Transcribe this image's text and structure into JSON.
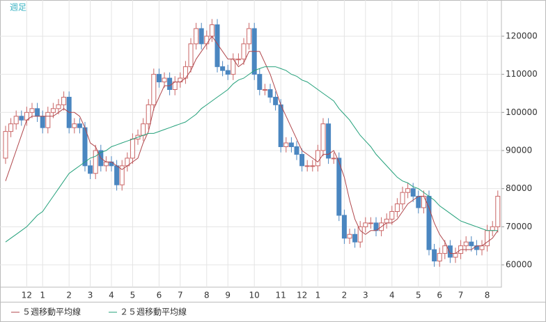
{
  "chart_data": {
    "type": "candlestick",
    "title": "週足",
    "categories": [
      null,
      null,
      null,
      null,
      "12",
      null,
      null,
      "1",
      null,
      null,
      null,
      null,
      "2",
      null,
      null,
      null,
      "3",
      null,
      null,
      null,
      "4",
      null,
      null,
      null,
      "5",
      null,
      null,
      null,
      null,
      "6",
      null,
      null,
      null,
      "7",
      null,
      null,
      null,
      null,
      "8",
      null,
      null,
      null,
      "9",
      null,
      null,
      null,
      null,
      "10",
      null,
      null,
      null,
      null,
      "11",
      null,
      null,
      null,
      "12",
      null,
      null,
      "1",
      null,
      null,
      null,
      null,
      "2",
      null,
      null,
      null,
      "3",
      null,
      null,
      null,
      null,
      "4",
      null,
      null,
      null,
      null,
      "5",
      null,
      null,
      null,
      "6",
      null,
      null,
      null,
      "7",
      null,
      null,
      null,
      null,
      "8",
      null,
      null
    ],
    "open": [
      88000,
      95000,
      97000,
      99000,
      98000,
      100000,
      101000,
      99000,
      96000,
      100000,
      101000,
      102000,
      104000,
      96000,
      97000,
      96000,
      86000,
      84000,
      90000,
      86000,
      87000,
      86000,
      81000,
      86000,
      88000,
      93000,
      94000,
      97000,
      102000,
      110000,
      108000,
      109000,
      106000,
      108000,
      109000,
      112000,
      118000,
      122000,
      118000,
      120000,
      123000,
      112000,
      111000,
      110000,
      114000,
      114000,
      118000,
      122000,
      110000,
      106000,
      106000,
      104000,
      102000,
      91000,
      92000,
      91000,
      89000,
      86000,
      86000,
      86000,
      90000,
      97000,
      88000,
      88000,
      73000,
      67000,
      68000,
      66000,
      70000,
      71000,
      71000,
      69000,
      71000,
      72000,
      74000,
      76000,
      79000,
      80000,
      78000,
      75000,
      78000,
      64000,
      61000,
      63000,
      65000,
      62000,
      63000,
      65000,
      66000,
      65000,
      64000,
      65000,
      69000,
      70000
    ],
    "high": [
      96500,
      98500,
      100500,
      100500,
      101500,
      102500,
      102500,
      100500,
      101500,
      102500,
      103500,
      105500,
      105500,
      98500,
      98500,
      97500,
      87500,
      91500,
      91500,
      88500,
      88500,
      87500,
      87500,
      89500,
      94500,
      95500,
      98500,
      103500,
      111500,
      111500,
      110500,
      110500,
      109500,
      110500,
      113500,
      119500,
      123500,
      123500,
      121500,
      124500,
      124500,
      113500,
      112500,
      115500,
      115500,
      119500,
      123500,
      123500,
      111500,
      107500,
      107500,
      105500,
      103500,
      93500,
      93500,
      92500,
      90500,
      87500,
      87500,
      91500,
      98500,
      98500,
      89500,
      89500,
      74500,
      69500,
      69500,
      71500,
      72500,
      72500,
      72500,
      72500,
      73500,
      75500,
      77500,
      80500,
      81500,
      81500,
      79500,
      79500,
      79500,
      65500,
      64500,
      66500,
      66500,
      64500,
      66500,
      67500,
      67500,
      66500,
      66500,
      70500,
      71500,
      79500
    ],
    "low": [
      86500,
      93500,
      95500,
      96500,
      96500,
      98500,
      97500,
      94500,
      94500,
      98500,
      99500,
      100500,
      94500,
      94500,
      94500,
      84500,
      82500,
      82500,
      84500,
      84500,
      84500,
      79500,
      79500,
      84500,
      86500,
      91500,
      92500,
      95500,
      100500,
      106500,
      106500,
      104500,
      104500,
      106500,
      107500,
      110500,
      116500,
      116500,
      116500,
      118500,
      110500,
      109500,
      108500,
      108500,
      112500,
      112500,
      116500,
      108500,
      104500,
      104500,
      102500,
      100500,
      89500,
      89500,
      89500,
      87500,
      84500,
      84500,
      84500,
      84500,
      88500,
      86500,
      86500,
      71500,
      65500,
      65500,
      64500,
      64500,
      68500,
      69500,
      67500,
      67500,
      69500,
      70500,
      72500,
      74500,
      77500,
      76500,
      73500,
      73500,
      62500,
      59500,
      59500,
      61500,
      60500,
      60500,
      61500,
      63500,
      63500,
      62500,
      62500,
      63500,
      67500,
      68500
    ],
    "close": [
      95000,
      97000,
      99000,
      98000,
      100000,
      101000,
      99000,
      96000,
      100000,
      101000,
      102000,
      104000,
      96000,
      97000,
      96000,
      86000,
      84000,
      90000,
      86000,
      87000,
      86000,
      81000,
      86000,
      88000,
      93000,
      94000,
      97000,
      102000,
      110000,
      108000,
      109000,
      106000,
      108000,
      109000,
      112000,
      118000,
      122000,
      118000,
      120000,
      123000,
      112000,
      111000,
      110000,
      114000,
      114000,
      118000,
      122000,
      110000,
      106000,
      106000,
      104000,
      102000,
      91000,
      92000,
      91000,
      89000,
      86000,
      86000,
      86000,
      90000,
      97000,
      88000,
      88000,
      73000,
      67000,
      68000,
      66000,
      70000,
      71000,
      71000,
      69000,
      71000,
      72000,
      74000,
      76000,
      79000,
      80000,
      78000,
      75000,
      78000,
      64000,
      61000,
      63000,
      65000,
      62000,
      63000,
      65000,
      66000,
      65000,
      64000,
      65000,
      69000,
      70000,
      78000
    ],
    "up_color": "#c96464",
    "down_color": "#4a86c0",
    "series": [
      {
        "name": "５週移動平均線",
        "color": "#b0464b",
        "values": [
          82000,
          86000,
          90000,
          94000,
          98000,
          99000,
          99000,
          99000,
          99000,
          99000,
          100000,
          101000,
          100000,
          100000,
          99000,
          96000,
          92000,
          91000,
          88000,
          87000,
          87000,
          86000,
          85000,
          86000,
          87000,
          88000,
          92000,
          95000,
          101000,
          104000,
          107000,
          107000,
          108000,
          108000,
          109000,
          111000,
          114000,
          116000,
          118000,
          120000,
          118000,
          116000,
          114000,
          114000,
          112000,
          113000,
          116000,
          116000,
          116000,
          113000,
          110000,
          106000,
          102000,
          99000,
          96000,
          93000,
          90000,
          89000,
          88000,
          87000,
          89000,
          89000,
          90000,
          87000,
          83000,
          77000,
          72000,
          69000,
          68000,
          69000,
          69000,
          70000,
          71000,
          71000,
          72000,
          74000,
          76000,
          77000,
          78000,
          78000,
          75000,
          71000,
          68000,
          66000,
          63000,
          63000,
          64000,
          64000,
          64000,
          65000,
          65000,
          66000,
          67000,
          69000
        ]
      },
      {
        "name": "２５週移動平均線",
        "color": "#23a07a",
        "values": [
          66000,
          67000,
          68000,
          69000,
          70000,
          71500,
          73000,
          74000,
          76000,
          78000,
          80000,
          82000,
          84000,
          85000,
          86000,
          87000,
          88000,
          88500,
          89500,
          90000,
          91000,
          91500,
          92000,
          92500,
          93000,
          93500,
          94000,
          94500,
          94500,
          95000,
          95500,
          96000,
          96500,
          97000,
          97500,
          98500,
          99500,
          101000,
          102000,
          103000,
          104000,
          105000,
          106000,
          107500,
          108500,
          109000,
          110000,
          111000,
          111500,
          112000,
          112000,
          112000,
          111500,
          111000,
          110000,
          109500,
          108500,
          108000,
          107000,
          106000,
          105000,
          104000,
          103000,
          101000,
          99500,
          98000,
          96000,
          94000,
          92500,
          91000,
          89000,
          87500,
          86000,
          84500,
          83000,
          82000,
          81500,
          80500,
          80000,
          79000,
          78000,
          77000,
          75500,
          74500,
          73500,
          72500,
          71500,
          71000,
          70500,
          70000,
          69500,
          69000,
          69000,
          69000
        ]
      }
    ],
    "ylim": [
      54150,
      129500
    ],
    "yticks": [
      60000,
      70000,
      80000,
      90000,
      100000,
      110000,
      120000
    ],
    "grid": true
  }
}
